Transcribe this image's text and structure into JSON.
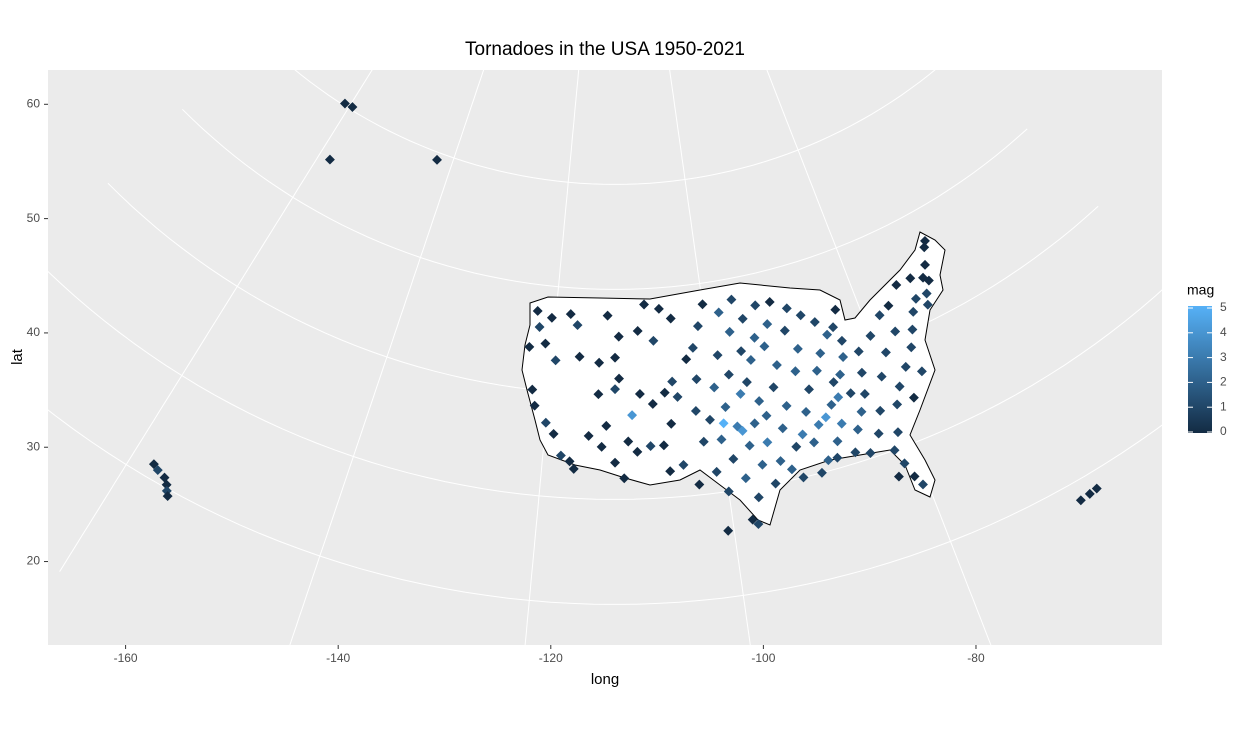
{
  "chart_data": {
    "type": "scatter",
    "title": "Tornadoes in the USA 1950-2021",
    "x_label": "long",
    "y_label": "lat",
    "xlim": [
      -167.3,
      -62.5
    ],
    "ylim": [
      12.7,
      63
    ],
    "xticks": [
      -160,
      -140,
      -120,
      -100,
      -80
    ],
    "yticks": [
      20,
      30,
      40,
      50,
      60
    ],
    "grid": true,
    "x": [
      -160.9,
      -159.5,
      -158.2,
      -142.6,
      -157.8,
      -157.2,
      -156.3,
      -155.8,
      -155.5,
      -155.2,
      -67.5,
      -66.5,
      -65.7,
      -100.6,
      -122.5,
      -122,
      -120.5,
      -118,
      -117,
      -123,
      -121,
      -119.5,
      -116.5,
      -114,
      -112,
      -111.5,
      -113,
      -109,
      -107,
      -106,
      -108,
      -104.5,
      -122,
      -121.5,
      -120,
      -119,
      -118,
      -117,
      -116.5,
      -115,
      -113,
      -112,
      -111.5,
      -114,
      -110,
      -109,
      -107.5,
      -106,
      -105,
      -104.5,
      -112,
      -111,
      -109.5,
      -108,
      -106.5,
      -106,
      -104.5,
      -105.5,
      -110.5,
      -113.5,
      -102,
      -101,
      -100,
      -98,
      -97,
      -99,
      -102,
      -100,
      -98,
      -97,
      -99,
      -101,
      -102,
      -100,
      -98,
      -97,
      -99,
      -101,
      -103,
      -100,
      -98,
      -96,
      -97,
      -98,
      -97.5,
      -95,
      -94,
      -95,
      -96,
      -95,
      -96,
      -95,
      -96,
      -94,
      -95,
      -96,
      -93,
      -92,
      -93,
      -92,
      -93,
      -92,
      -93,
      -92,
      -93,
      -92,
      -90,
      -89,
      -90,
      -89,
      -90,
      -89,
      -90,
      -89,
      -90,
      -89,
      -87.5,
      -86,
      -85,
      -86.5,
      -87.5,
      -86,
      -87,
      -86.5,
      -87.5,
      -88,
      -86,
      -85,
      -84,
      -84.5,
      -85,
      -84,
      -83.5,
      -84,
      -83,
      -82,
      -82.5,
      -83,
      -82,
      -83,
      -82,
      -81.5,
      -81,
      -80.5,
      -82.5,
      -81,
      -80,
      -79,
      -80.5,
      -79,
      -80,
      -78,
      -76.5,
      -77,
      -76,
      -77.5,
      -76,
      -78,
      -75,
      -74,
      -73,
      -72,
      -71.5,
      -71,
      -72.5,
      -70,
      -69,
      -68.5,
      -70.5,
      -74.5,
      -88,
      -97.5,
      -99.5,
      -91,
      -94.5,
      -102.5,
      -103,
      -91,
      -84.5,
      -86
    ],
    "y": [
      60.2,
      60.3,
      54.9,
      59.3,
      21.4,
      21.1,
      20.8,
      20.3,
      19.8,
      19.4,
      18.2,
      18.3,
      18.4,
      26.3,
      47.5,
      46,
      47,
      47.5,
      46.5,
      44,
      44.5,
      43,
      43.5,
      43,
      43.5,
      45.5,
      47.5,
      46,
      45,
      48,
      48.5,
      47,
      40,
      38.5,
      37,
      36,
      34,
      33.5,
      32.8,
      36,
      37,
      40.5,
      41.5,
      40,
      38,
      40,
      39,
      40,
      41,
      39.5,
      33.5,
      32,
      34.5,
      35,
      35,
      32.5,
      33,
      37,
      35.5,
      35,
      44,
      46,
      48,
      47,
      45,
      43,
      41,
      40,
      41,
      39,
      38,
      37,
      35,
      35,
      36,
      34,
      33,
      32,
      31,
      30,
      31,
      32,
      29,
      27,
      26.5,
      30,
      32,
      34,
      36,
      38,
      40,
      42,
      43,
      44,
      46,
      48,
      47,
      45,
      43,
      41,
      39,
      37,
      35,
      33,
      31,
      30,
      30,
      31,
      33,
      34.5,
      36,
      38,
      40,
      42,
      44,
      46,
      45,
      44,
      42.5,
      41,
      39.5,
      38,
      36,
      34,
      32.5,
      31,
      31,
      33,
      34.5,
      36.5,
      38.5,
      40,
      41.5,
      43,
      44.5,
      40,
      38,
      36,
      34,
      32,
      30,
      28.5,
      27,
      26,
      27.5,
      31.5,
      34,
      35.5,
      37,
      39,
      41,
      42.5,
      43,
      40.5,
      38.5,
      37,
      36,
      34,
      40,
      41.5,
      42.5,
      41.5,
      42.5,
      44,
      44.5,
      45,
      46.5,
      47,
      43.5,
      44.5,
      35,
      35.5,
      36.5,
      34,
      36.5,
      38,
      43,
      47,
      30.5,
      36.5
    ],
    "mag": [
      0,
      0,
      0,
      0,
      0,
      1,
      0,
      0,
      1,
      0,
      0,
      0,
      0,
      0,
      0,
      1,
      0,
      0,
      1,
      0,
      0,
      1,
      0,
      0,
      0,
      0,
      0,
      0,
      1,
      0,
      0,
      0,
      0,
      0,
      1,
      0,
      1,
      0,
      0,
      0,
      0,
      1,
      0,
      0,
      4,
      0,
      0,
      0,
      1,
      1,
      0,
      0,
      0,
      1,
      0,
      0,
      1,
      0,
      0,
      0,
      1,
      1,
      0,
      2,
      2,
      1,
      1,
      2,
      1,
      3,
      2,
      1,
      1,
      2,
      3,
      2,
      1,
      1,
      0,
      1,
      2,
      2,
      1,
      0,
      1,
      1,
      2,
      3,
      2,
      2,
      1,
      2,
      1,
      2,
      1,
      1,
      1,
      2,
      2,
      2,
      1,
      2,
      2,
      1,
      2,
      1,
      1,
      2,
      2,
      3,
      2,
      1,
      2,
      2,
      1,
      1,
      1,
      1,
      2,
      2,
      2,
      1,
      2,
      3,
      2,
      1,
      1,
      2,
      2,
      1,
      2,
      2,
      1,
      1,
      0,
      1,
      1,
      1,
      1,
      1,
      1,
      1,
      0,
      1,
      0,
      1,
      1,
      1,
      1,
      1,
      1,
      1,
      0,
      1,
      1,
      1,
      1,
      0,
      1,
      1,
      1,
      1,
      1,
      0,
      0,
      0,
      0,
      0,
      0,
      0,
      4,
      4,
      5,
      3,
      2,
      1,
      0,
      0,
      1,
      3
    ],
    "colorbar": {
      "title": "mag",
      "lim": [
        0,
        5
      ],
      "ticks": [
        0,
        1,
        2,
        3,
        4,
        5
      ],
      "colors": [
        "#132B43",
        "#56B1F7"
      ]
    }
  }
}
